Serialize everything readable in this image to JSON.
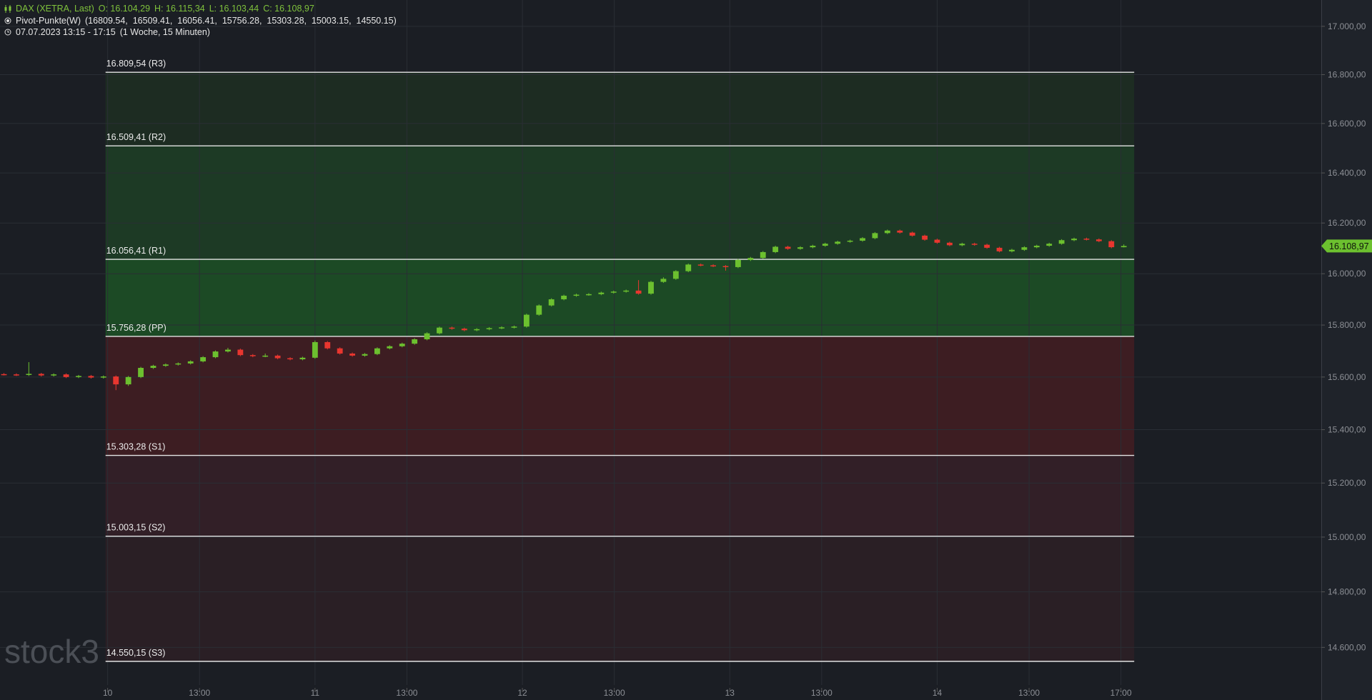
{
  "chart_data": {
    "type": "candlestick",
    "name": "DAX (XETRA, Last)",
    "ohlc_labels": [
      "O: 16.104,29",
      "H: 16.115,34",
      "L: 16.103,44",
      "C: 16.108,97"
    ],
    "indicator_name": "Pivot-Punkte(W)",
    "indicator_values": "(16809.54,  16509.41,  16056.41,  15756.28,  15303.28,  15003.15,  14550.15)",
    "period": "07.07.2023 13:15 - 17:15",
    "period_note": "(1 Woche, 15 Minuten)",
    "watermark": "stock3",
    "last_label": "16.108,97",
    "up_color": "#6cc02f",
    "down_color": "#e8362f",
    "log_y": true,
    "grid": true,
    "xlim": [
      9.481,
      15.852
    ],
    "ylim": [
      14466,
      17110
    ],
    "xticks": [
      10,
      {
        "value": 10.443,
        "label": "13:00"
      },
      11,
      {
        "value": 11.443,
        "label": "13:00"
      },
      12,
      {
        "value": 12.443,
        "label": "13:00"
      },
      13,
      {
        "value": 13.443,
        "label": "13:00"
      },
      14,
      {
        "value": 14.443,
        "label": "13:00"
      },
      {
        "value": 14.886,
        "label": "17:00"
      }
    ],
    "yticks": [
      {
        "value": 14600,
        "label": "14.600,00"
      },
      {
        "value": 14800,
        "label": "14.800,00"
      },
      {
        "value": 15000,
        "label": "15.000,00"
      },
      {
        "value": 15200,
        "label": "15.200,00"
      },
      {
        "value": 15400,
        "label": "15.400,00"
      },
      {
        "value": 15600,
        "label": "15.600,00"
      },
      {
        "value": 15800,
        "label": "15.800,00"
      },
      {
        "value": 16000,
        "label": "16.000,00"
      },
      {
        "value": 16200,
        "label": "16.200,00"
      },
      {
        "value": 16400,
        "label": "16.400,00"
      },
      {
        "value": 16600,
        "label": "16.600,00"
      },
      {
        "value": 16800,
        "label": "16.800,00"
      },
      {
        "value": 17000,
        "label": "17.000,00"
      }
    ],
    "pivots": [
      {
        "value": 16809.54,
        "label": "16.809,54 (R3)"
      },
      {
        "value": 16509.41,
        "label": "16.509,41 (R2)"
      },
      {
        "value": 16056.41,
        "label": "16.056,41 (R1)"
      },
      {
        "value": 15756.28,
        "label": "15.756,28 (PP)"
      },
      {
        "value": 15303.28,
        "label": "15.303,28 (S1)"
      },
      {
        "value": 15003.15,
        "label": "15.003,15 (S2)"
      },
      {
        "value": 14550.15,
        "label": "14.550,15 (S3)"
      }
    ],
    "pivot_x": [
      9.99,
      14.95
    ],
    "zone_colors": [
      "#1d2c22",
      "#1d3a25",
      "#1c4a25",
      "#3d1d22",
      "#321f27",
      "#2a1f25"
    ],
    "x": [
      9.5,
      9.56,
      9.62,
      9.68,
      9.74,
      9.8,
      9.86,
      9.92,
      9.98,
      10.04,
      10.1,
      10.16,
      10.22,
      10.28,
      10.34,
      10.4,
      10.46,
      10.52,
      10.58,
      10.64,
      10.7,
      10.76,
      10.82,
      10.88,
      10.94,
      11.0,
      11.06,
      11.12,
      11.18,
      11.24,
      11.3,
      11.36,
      11.42,
      11.48,
      11.54,
      11.6,
      11.66,
      11.72,
      11.78,
      11.84,
      11.9,
      11.96,
      12.02,
      12.08,
      12.14,
      12.2,
      12.26,
      12.32,
      12.38,
      12.44,
      12.5,
      12.56,
      12.62,
      12.68,
      12.74,
      12.8,
      12.86,
      12.92,
      12.98,
      13.04,
      13.1,
      13.16,
      13.22,
      13.28,
      13.34,
      13.4,
      13.46,
      13.52,
      13.58,
      13.64,
      13.7,
      13.76,
      13.82,
      13.88,
      13.94,
      14.0,
      14.06,
      14.12,
      14.18,
      14.24,
      14.3,
      14.36,
      14.42,
      14.48,
      14.54,
      14.6,
      14.66,
      14.72,
      14.78,
      14.84,
      14.9
    ],
    "open": [
      15611,
      15610,
      15608,
      15612,
      15606,
      15610,
      15600,
      15604,
      15598,
      15602,
      15572,
      15600,
      15635,
      15643,
      15648,
      15652,
      15660,
      15676,
      15698,
      15705,
      15684,
      15680,
      15682,
      15672,
      15668,
      15674,
      15734,
      15710,
      15690,
      15682,
      15688,
      15710,
      15718,
      15728,
      15745,
      15768,
      15790,
      15786,
      15780,
      15784,
      15788,
      15791,
      15794,
      15840,
      15876,
      15900,
      15914,
      15918,
      15920,
      15926,
      15930,
      15934,
      15922,
      15968,
      15980,
      16010,
      16036,
      16033,
      16030,
      16026,
      16054,
      16062,
      16085,
      16106,
      16098,
      16104,
      16110,
      16118,
      16126,
      16130,
      16140,
      16160,
      16170,
      16162,
      16150,
      16134,
      16122,
      16112,
      16118,
      16114,
      16102,
      16088,
      16094,
      16104,
      16110,
      16118,
      16132,
      16138,
      16135,
      16128,
      16104.29
    ],
    "high": [
      15615,
      15614,
      15657,
      15616,
      15614,
      15614,
      15608,
      15608,
      15606,
      15606,
      15604,
      15639,
      15647,
      15652,
      15656,
      15664,
      15680,
      15702,
      15712,
      15709,
      15688,
      15690,
      15686,
      15676,
      15678,
      15740,
      15738,
      15714,
      15694,
      15692,
      15714,
      15722,
      15732,
      15749,
      15772,
      15794,
      15794,
      15790,
      15788,
      15792,
      15795,
      15798,
      15844,
      15880,
      15904,
      15918,
      15922,
      15924,
      15930,
      15934,
      15938,
      15975,
      15972,
      15986,
      16014,
      16040,
      16040,
      16037,
      16034,
      16058,
      16066,
      16089,
      16110,
      16110,
      16108,
      16114,
      16122,
      16130,
      16134,
      16144,
      16164,
      16174,
      16174,
      16166,
      16154,
      16138,
      16126,
      16122,
      16122,
      16118,
      16106,
      16098,
      16108,
      16114,
      16122,
      16136,
      16142,
      16142,
      16139,
      16132,
      16115.34
    ],
    "low": [
      15606,
      15604,
      15604,
      15602,
      15602,
      15596,
      15596,
      15594,
      15594,
      15550,
      15566,
      15596,
      15631,
      15639,
      15644,
      15648,
      15656,
      15672,
      15694,
      15680,
      15676,
      15676,
      15668,
      15664,
      15664,
      15670,
      15706,
      15686,
      15678,
      15678,
      15684,
      15706,
      15714,
      15724,
      15741,
      15764,
      15782,
      15776,
      15776,
      15780,
      15784,
      15787,
      15790,
      15836,
      15872,
      15896,
      15910,
      15914,
      15916,
      15922,
      15926,
      15918,
      15918,
      15964,
      15976,
      16006,
      16029,
      16026,
      16012,
      16022,
      16050,
      16058,
      16081,
      16094,
      16094,
      16100,
      16106,
      16114,
      16122,
      16126,
      16136,
      16156,
      16158,
      16146,
      16130,
      16118,
      16108,
      16108,
      16110,
      16098,
      16084,
      16084,
      16090,
      16100,
      16106,
      16114,
      16128,
      16131,
      16124,
      16100,
      16103.44
    ],
    "close": [
      15610,
      15608,
      15612,
      15606,
      15610,
      15600,
      15604,
      15598,
      15602,
      15572,
      15600,
      15635,
      15643,
      15648,
      15652,
      15660,
      15676,
      15698,
      15705,
      15684,
      15680,
      15682,
      15672,
      15668,
      15674,
      15734,
      15710,
      15690,
      15682,
      15688,
      15710,
      15718,
      15728,
      15745,
      15768,
      15790,
      15786,
      15780,
      15784,
      15788,
      15791,
      15794,
      15840,
      15876,
      15900,
      15914,
      15918,
      15920,
      15926,
      15930,
      15934,
      15922,
      15968,
      15980,
      16010,
      16036,
      16033,
      16030,
      16026,
      16054,
      16062,
      16085,
      16106,
      16098,
      16104,
      16110,
      16118,
      16126,
      16130,
      16140,
      16160,
      16170,
      16162,
      16150,
      16134,
      16122,
      16112,
      16118,
      16114,
      16102,
      16088,
      16094,
      16104,
      16110,
      16118,
      16132,
      16138,
      16135,
      16128,
      16104.29,
      16108.97
    ]
  }
}
